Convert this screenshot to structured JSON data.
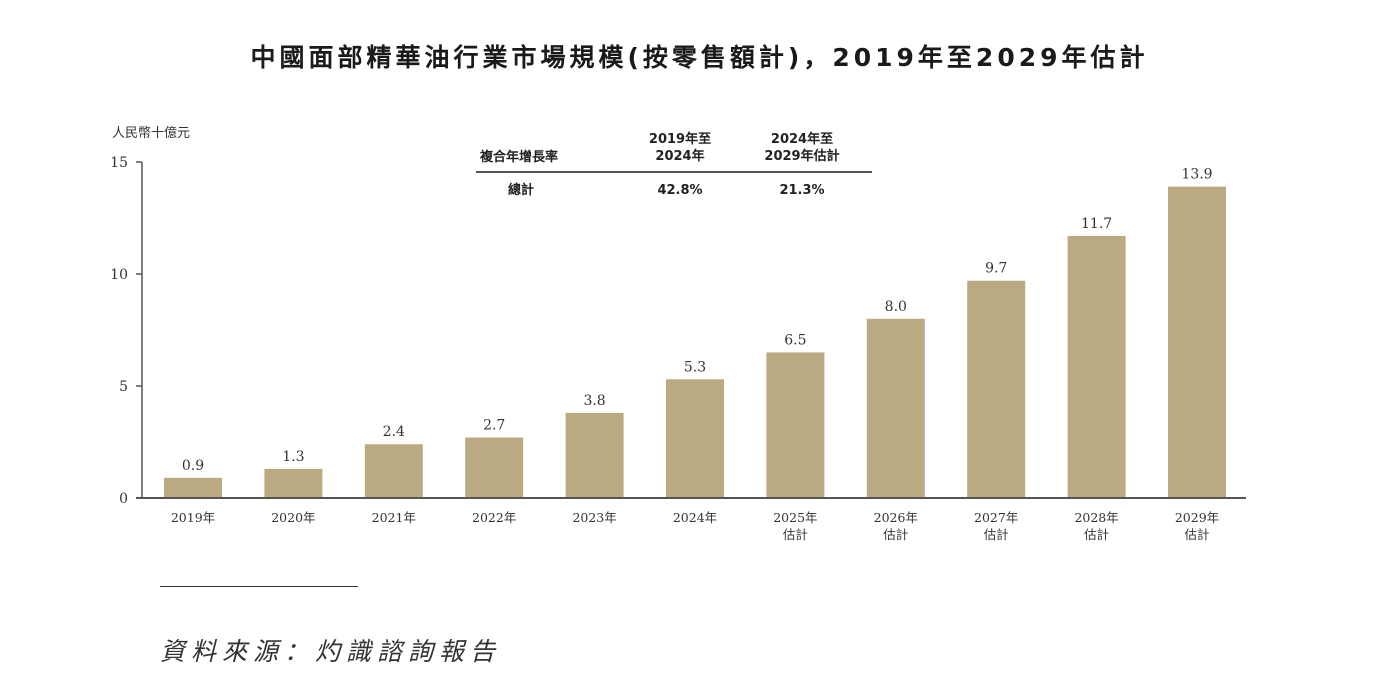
{
  "chart_data": {
    "type": "bar",
    "title": "中國面部精華油行業市場規模(按零售額計)，2019年至2029年估計",
    "ylabel": "人民幣十億元",
    "xlabel": "",
    "ylim": [
      0,
      15
    ],
    "yticks": [
      "0",
      "5",
      "10",
      "15"
    ],
    "ytick_values": [
      0,
      5,
      10,
      15
    ],
    "categories": [
      "2019年",
      "2020年",
      "2021年",
      "2022年",
      "2023年",
      "2024年",
      "2025年\n估計",
      "2026年\n估計",
      "2027年\n估計",
      "2028年\n估計",
      "2029年\n估計"
    ],
    "category_lines": [
      [
        "2019年"
      ],
      [
        "2020年"
      ],
      [
        "2021年"
      ],
      [
        "2022年"
      ],
      [
        "2023年"
      ],
      [
        "2024年"
      ],
      [
        "2025年",
        "估計"
      ],
      [
        "2026年",
        "估計"
      ],
      [
        "2027年",
        "估計"
      ],
      [
        "2028年",
        "估計"
      ],
      [
        "2029年",
        "估計"
      ]
    ],
    "values": [
      0.9,
      1.3,
      2.4,
      2.7,
      3.8,
      5.3,
      6.5,
      8.0,
      9.7,
      11.7,
      13.9
    ],
    "data_labels": [
      "0.9",
      "1.3",
      "2.4",
      "2.7",
      "3.8",
      "5.3",
      "6.5",
      "8.0",
      "9.7",
      "11.7",
      "13.9"
    ],
    "grid": false,
    "bar_color": "#bba981",
    "axis_color": "#555555"
  },
  "cagr_table": {
    "header_label": "複合年增長率",
    "col1_header_line1": "2019年至",
    "col1_header_line2": "2024年",
    "col2_header_line1": "2024年至",
    "col2_header_line2": "2029年估計",
    "row_label": "總計",
    "col1_value": "42.8%",
    "col2_value": "21.3%"
  },
  "source": "資料來源：灼識諮詢報告"
}
